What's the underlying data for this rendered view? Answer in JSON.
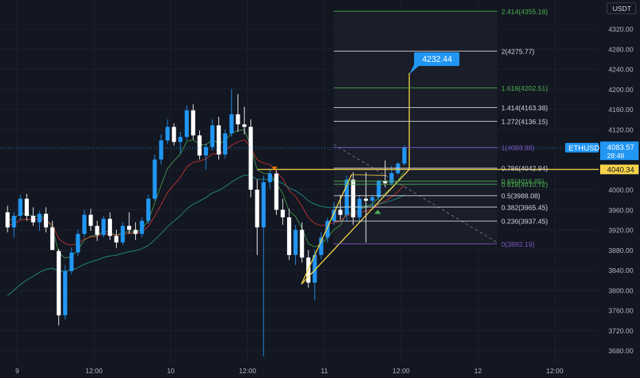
{
  "symbol": "ETHUSDT",
  "currency": "USDT",
  "colors": {
    "background": "#131722",
    "up": "#2196f3",
    "down": "#ffffff",
    "grid": "#1e222d",
    "axis_text": "#b2b5be",
    "fib_green": "#4caf50",
    "fib_white": "#d1d4dc",
    "fib_purple": "#7e57c2",
    "yellow": "#f5d24a",
    "ema_fast": "#4caf50",
    "ema_mid": "#e53935",
    "ema_slow": "#26a69a"
  },
  "price_axis": {
    "ticks": [
      "4320.00",
      "4280.00",
      "4240.00",
      "4200.00",
      "4160.00",
      "4120.00",
      "4080.00",
      "4040.00",
      "4000.00",
      "3960.00",
      "3920.00",
      "3880.00",
      "3840.00",
      "3800.00",
      "3760.00",
      "3720.00",
      "3680.00"
    ]
  },
  "time_axis": {
    "labels": [
      {
        "text": "9",
        "index": 0
      },
      {
        "text": "12:00",
        "index": 12
      },
      {
        "text": "10",
        "index": 24
      },
      {
        "text": "12:00",
        "index": 36
      },
      {
        "text": "11",
        "index": 48
      },
      {
        "text": "12:00",
        "index": 60
      },
      {
        "text": "12",
        "index": 72
      },
      {
        "text": "12:00",
        "index": 84
      }
    ]
  },
  "current_price": {
    "label": "ETHUSDT",
    "value": "4083.57",
    "countdown": "28:48",
    "price": 4083.57
  },
  "horizontal_line": {
    "value": "4040.34",
    "price": 4040.34
  },
  "target_callout": {
    "value": "4232.44",
    "price": 4232.44
  },
  "fib_levels": [
    {
      "label": "2.414(4355.18)",
      "price": 4355.18,
      "color": "green"
    },
    {
      "label": "2(4275.77)",
      "price": 4275.77,
      "color": "white"
    },
    {
      "label": "1.618(4202.51)",
      "price": 4202.51,
      "color": "green"
    },
    {
      "label": "1.414(4163.38)",
      "price": 4163.38,
      "color": "white"
    },
    {
      "label": "1.272(4136.15)",
      "price": 4136.15,
      "color": "white"
    },
    {
      "label": "1(4083.98)",
      "price": 4083.98,
      "color": "purple"
    },
    {
      "label": "0.786(4042.94)",
      "price": 4042.94,
      "color": "white"
    },
    {
      "label": "0.65(4016.85)",
      "price": 4016.85,
      "color": "green"
    },
    {
      "label": "0.618(4010.72)",
      "price": 4010.72,
      "color": "green"
    },
    {
      "label": "0.5(3988.08)",
      "price": 3988.08,
      "color": "white"
    },
    {
      "label": "0.382(3965.45)",
      "price": 3965.45,
      "color": "white"
    },
    {
      "label": "0.236(3937.45)",
      "price": 3937.45,
      "color": "white"
    },
    {
      "label": "0(3892.19)",
      "price": 3892.19,
      "color": "purple"
    }
  ],
  "chart_data": {
    "type": "candlestick",
    "xlabel": "",
    "ylabel": "",
    "ylim": [
      3660,
      4365
    ],
    "grid": true,
    "candles": [
      {
        "o": 3955,
        "h": 3968,
        "l": 3915,
        "c": 3925
      },
      {
        "o": 3925,
        "h": 3955,
        "l": 3905,
        "c": 3948
      },
      {
        "o": 3948,
        "h": 3990,
        "l": 3940,
        "c": 3982
      },
      {
        "o": 3982,
        "h": 3992,
        "l": 3938,
        "c": 3948
      },
      {
        "o": 3948,
        "h": 3965,
        "l": 3928,
        "c": 3935
      },
      {
        "o": 3935,
        "h": 3958,
        "l": 3918,
        "c": 3952
      },
      {
        "o": 3952,
        "h": 3965,
        "l": 3915,
        "c": 3925
      },
      {
        "o": 3925,
        "h": 3938,
        "l": 3882,
        "c": 3880
      },
      {
        "o": 3878,
        "h": 3882,
        "l": 3730,
        "c": 3750
      },
      {
        "o": 3750,
        "h": 3850,
        "l": 3742,
        "c": 3838
      },
      {
        "o": 3838,
        "h": 3885,
        "l": 3832,
        "c": 3875
      },
      {
        "o": 3875,
        "h": 3920,
        "l": 3868,
        "c": 3912
      },
      {
        "o": 3912,
        "h": 3960,
        "l": 3905,
        "c": 3950
      },
      {
        "o": 3950,
        "h": 3962,
        "l": 3918,
        "c": 3928
      },
      {
        "o": 3928,
        "h": 3938,
        "l": 3898,
        "c": 3910
      },
      {
        "o": 3910,
        "h": 3948,
        "l": 3905,
        "c": 3942
      },
      {
        "o": 3942,
        "h": 3955,
        "l": 3900,
        "c": 3908
      },
      {
        "o": 3908,
        "h": 3920,
        "l": 3884,
        "c": 3895
      },
      {
        "o": 3895,
        "h": 3935,
        "l": 3890,
        "c": 3928
      },
      {
        "o": 3928,
        "h": 3955,
        "l": 3912,
        "c": 3920
      },
      {
        "o": 3920,
        "h": 3935,
        "l": 3900,
        "c": 3912
      },
      {
        "o": 3912,
        "h": 3945,
        "l": 3905,
        "c": 3938
      },
      {
        "o": 3938,
        "h": 3990,
        "l": 3932,
        "c": 3982
      },
      {
        "o": 3982,
        "h": 4070,
        "l": 3978,
        "c": 4060
      },
      {
        "o": 4060,
        "h": 4110,
        "l": 4050,
        "c": 4098
      },
      {
        "o": 4098,
        "h": 4140,
        "l": 4090,
        "c": 4125
      },
      {
        "o": 4125,
        "h": 4132,
        "l": 4088,
        "c": 4095
      },
      {
        "o": 4095,
        "h": 4115,
        "l": 4072,
        "c": 4105
      },
      {
        "o": 4105,
        "h": 4168,
        "l": 4098,
        "c": 4158
      },
      {
        "o": 4158,
        "h": 4170,
        "l": 4100,
        "c": 4108
      },
      {
        "o": 4108,
        "h": 4118,
        "l": 4060,
        "c": 4068
      },
      {
        "o": 4068,
        "h": 4092,
        "l": 4040,
        "c": 4085
      },
      {
        "o": 4085,
        "h": 4140,
        "l": 4078,
        "c": 4128
      },
      {
        "o": 4128,
        "h": 4145,
        "l": 4060,
        "c": 4070
      },
      {
        "o": 4070,
        "h": 4120,
        "l": 4062,
        "c": 4112
      },
      {
        "o": 4112,
        "h": 4200,
        "l": 4105,
        "c": 4150
      },
      {
        "o": 4150,
        "h": 4190,
        "l": 4115,
        "c": 4130
      },
      {
        "o": 4130,
        "h": 4165,
        "l": 4110,
        "c": 4125
      },
      {
        "o": 4125,
        "h": 4140,
        "l": 3985,
        "c": 4000
      },
      {
        "o": 4000,
        "h": 4020,
        "l": 3870,
        "c": 3925
      },
      {
        "o": 3925,
        "h": 4028,
        "l": 3668,
        "c": 4015
      },
      {
        "o": 4015,
        "h": 4040,
        "l": 4002,
        "c": 4032
      },
      {
        "o": 4032,
        "h": 4038,
        "l": 3950,
        "c": 3960
      },
      {
        "o": 3960,
        "h": 3982,
        "l": 3930,
        "c": 3945
      },
      {
        "o": 3945,
        "h": 3962,
        "l": 3860,
        "c": 3870
      },
      {
        "o": 3870,
        "h": 3930,
        "l": 3850,
        "c": 3920
      },
      {
        "o": 3920,
        "h": 3935,
        "l": 3855,
        "c": 3865
      },
      {
        "o": 3865,
        "h": 3880,
        "l": 3805,
        "c": 3815
      },
      {
        "o": 3815,
        "h": 3880,
        "l": 3780,
        "c": 3870
      },
      {
        "o": 3870,
        "h": 3915,
        "l": 3862,
        "c": 3905
      },
      {
        "o": 3905,
        "h": 3945,
        "l": 3895,
        "c": 3938
      },
      {
        "o": 3938,
        "h": 3975,
        "l": 3930,
        "c": 3960
      },
      {
        "o": 3960,
        "h": 3990,
        "l": 3940,
        "c": 3950
      },
      {
        "o": 3950,
        "h": 4028,
        "l": 3938,
        "c": 4020
      },
      {
        "o": 4020,
        "h": 4035,
        "l": 3930,
        "c": 3945
      },
      {
        "o": 3945,
        "h": 3990,
        "l": 3935,
        "c": 3982
      },
      {
        "o": 3982,
        "h": 4035,
        "l": 3895,
        "c": 3978
      },
      {
        "o": 3978,
        "h": 3990,
        "l": 3965,
        "c": 3985
      },
      {
        "o": 3985,
        "h": 4020,
        "l": 3975,
        "c": 4018
      },
      {
        "o": 4018,
        "h": 4058,
        "l": 4005,
        "c": 4013
      },
      {
        "o": 4013,
        "h": 4048,
        "l": 4008,
        "c": 4033
      },
      {
        "o": 4033,
        "h": 4055,
        "l": 4030,
        "c": 4052
      },
      {
        "o": 4052,
        "h": 4088,
        "l": 4048,
        "c": 4083.57
      }
    ]
  }
}
